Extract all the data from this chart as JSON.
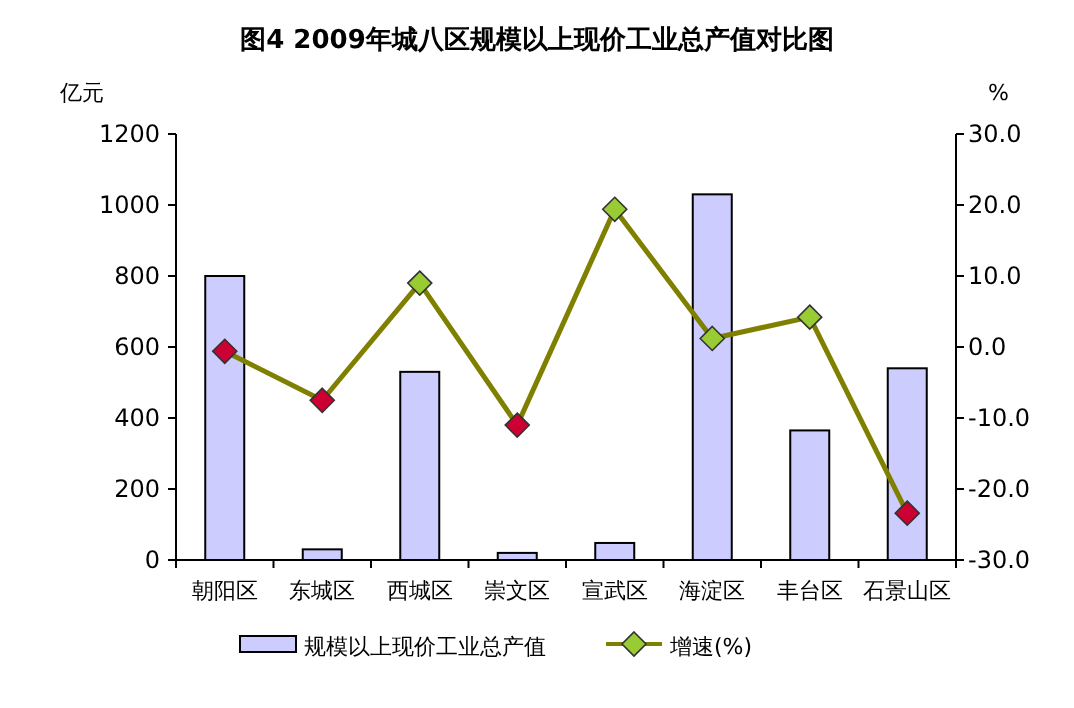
{
  "chart_data": {
    "type": "bar",
    "title": "图4  2009年城八区规模以上现价工业总产值对比图",
    "ylabel": "亿元",
    "y2label": "%",
    "categories": [
      "朝阳区",
      "东城区",
      "西城区",
      "崇文区",
      "宣武区",
      "海淀区",
      "丰台区",
      "石景山区"
    ],
    "series": [
      {
        "name": "规模以上现价工业总产值",
        "color": "#ccccff",
        "values": [
          800,
          30,
          530,
          20,
          48,
          1030,
          365,
          540
        ]
      },
      {
        "name": "增速(%)",
        "type": "line",
        "axis": "y2",
        "color": "#808000",
        "colors": [
          "#cc0033",
          "#cc0033",
          "#99cc33",
          "#cc0033",
          "#99cc33",
          "#99cc33",
          "#99cc33",
          "#cc0033"
        ],
        "values": [
          -0.6,
          -7.5,
          9.0,
          -11.0,
          19.4,
          1.2,
          4.2,
          -23.4
        ]
      }
    ],
    "ylim": [
      0,
      1200
    ],
    "yticks": [
      0,
      200,
      400,
      600,
      800,
      1000,
      1200
    ],
    "y2lim": [
      -30,
      30
    ],
    "y2ticks": [
      {
        "value": -30,
        "label": "-30.0"
      },
      {
        "value": -20,
        "label": "-20.0"
      },
      {
        "value": -10,
        "label": "-10.0"
      },
      {
        "value": 0,
        "label": "0.0"
      },
      {
        "value": 10,
        "label": "10.0"
      },
      {
        "value": 20,
        "label": "20.0"
      },
      {
        "value": 30,
        "label": "30.0"
      }
    ],
    "marker": "diamond",
    "legend": "bottom"
  }
}
